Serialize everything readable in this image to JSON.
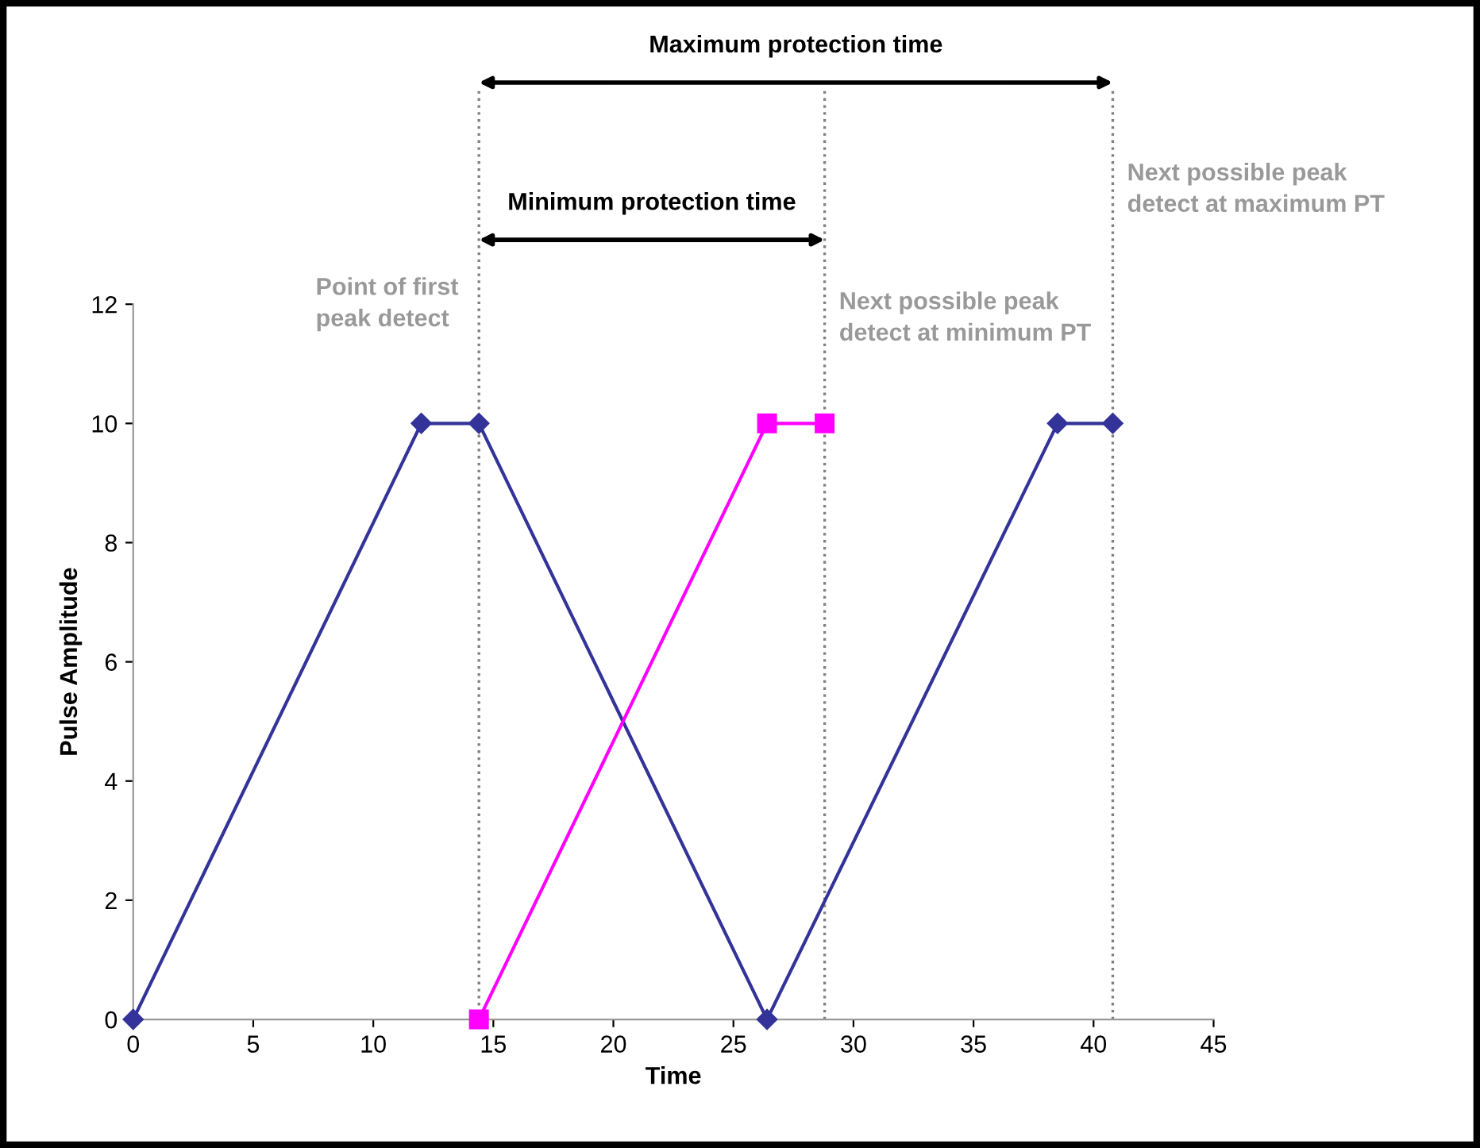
{
  "chart_data": {
    "type": "line",
    "xlabel": "Time",
    "ylabel": "Pulse Amplitude",
    "series": [
      {
        "color": "#333399",
        "marker": "diamond",
        "x": [
          0,
          12,
          14.4,
          26.4,
          38.5,
          40.8
        ],
        "values": [
          0,
          10,
          10,
          0,
          10,
          10
        ]
      },
      {
        "color": "#ff00ff",
        "marker": "square",
        "x": [
          14.4,
          26.4,
          28.8
        ],
        "values": [
          0,
          10,
          10
        ]
      }
    ],
    "xlim": [
      0,
      45
    ],
    "xticks": [
      0,
      5,
      10,
      15,
      20,
      25,
      30,
      35,
      40,
      45
    ],
    "ylim": [
      0,
      12
    ],
    "yticks": [
      0,
      2,
      4,
      6,
      8,
      10,
      12
    ],
    "grid": false,
    "legend": false,
    "ref_lines": [
      {
        "axis": "x",
        "value": 14.4,
        "label": "Point of first peak detect",
        "color": "#808080",
        "line_style": "dotted"
      },
      {
        "axis": "x",
        "value": 28.8,
        "label": "Next possible peak detect at minimum PT",
        "color": "#808080",
        "line_style": "dotted"
      },
      {
        "axis": "x",
        "value": 40.8,
        "label": "Next possible peak detect at maximum PT",
        "color": "#808080",
        "line_style": "dotted"
      }
    ],
    "annotations": [
      "Minimum protection time",
      "Maximum protection time"
    ]
  }
}
